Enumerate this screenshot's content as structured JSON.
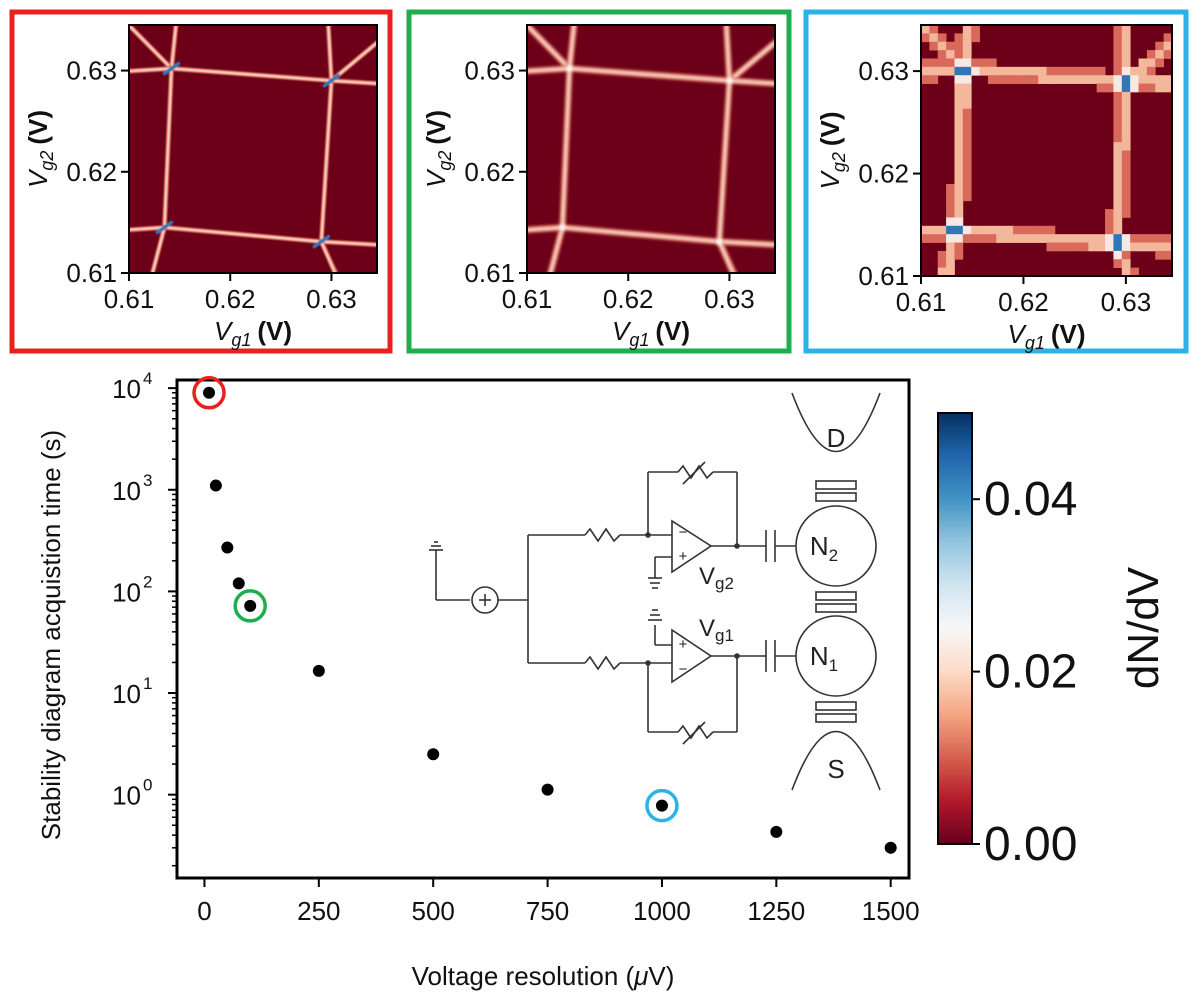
{
  "colors": {
    "panel_red": "#e8201e",
    "panel_green": "#1fae4e",
    "panel_blue": "#2bb3e6",
    "map_bg": "#6b0018",
    "line_light": "#f6d2c2",
    "peak_blue": "#2f78b8",
    "point": "#000000"
  },
  "insets": [
    {
      "name": "red",
      "border_color": "#e8201e",
      "style": "sharp",
      "xlabel_symbol": "V",
      "xlabel_sub": "g1",
      "xlabel_unit": "(V)",
      "ylabel_symbol": "V",
      "ylabel_sub": "g2",
      "ylabel_unit": "(V)",
      "xticks": [
        0.61,
        0.62,
        0.63
      ],
      "yticks": [
        0.61,
        0.62,
        0.63
      ],
      "xtick_labels": [
        "0.61",
        "0.62",
        "0.63"
      ],
      "ytick_labels": [
        "0.61",
        "0.62",
        "0.63"
      ],
      "xlim": [
        0.61,
        0.6345
      ],
      "ylim": [
        0.61,
        0.6345
      ]
    },
    {
      "name": "green",
      "border_color": "#1fae4e",
      "style": "medium",
      "xlabel_symbol": "V",
      "xlabel_sub": "g1",
      "xlabel_unit": "(V)",
      "ylabel_symbol": "V",
      "ylabel_sub": "g2",
      "ylabel_unit": "(V)",
      "xticks": [
        0.61,
        0.62,
        0.63
      ],
      "yticks": [
        0.61,
        0.62,
        0.63
      ],
      "xtick_labels": [
        "0.61",
        "0.62",
        "0.63"
      ],
      "ytick_labels": [
        "0.61",
        "0.62",
        "0.63"
      ],
      "xlim": [
        0.61,
        0.6345
      ],
      "ylim": [
        0.61,
        0.6345
      ]
    },
    {
      "name": "blue",
      "border_color": "#2bb3e6",
      "style": "pixelated",
      "xlabel_symbol": "V",
      "xlabel_sub": "g1",
      "xlabel_unit": "(V)",
      "ylabel_symbol": "V",
      "ylabel_sub": "g2",
      "ylabel_unit": "(V)",
      "xticks": [
        0.61,
        0.62,
        0.63
      ],
      "yticks": [
        0.61,
        0.62,
        0.63
      ],
      "xtick_labels": [
        "0.61",
        "0.62",
        "0.63"
      ],
      "ytick_labels": [
        "0.61",
        "0.62",
        "0.63"
      ],
      "xlim": [
        0.61,
        0.6345
      ],
      "ylim": [
        0.61,
        0.6345
      ]
    }
  ],
  "chart_data": {
    "type": "scatter",
    "xlabel_prefix": "Voltage resolution (",
    "xlabel_mu": "μ",
    "xlabel_suffix": "V)",
    "ylabel": "Stability diagram acquistion time (s)",
    "xlim": [
      -60,
      1540
    ],
    "ylog_range": [
      -0.82,
      4.08
    ],
    "yscale": "log",
    "xticks": [
      0,
      250,
      500,
      750,
      1000,
      1250,
      1500
    ],
    "xtick_labels": [
      "0",
      "250",
      "500",
      "750",
      "1000",
      "1250",
      "1500"
    ],
    "ytick_exponents": [
      0,
      1,
      2,
      3,
      4
    ],
    "ytick_base": "10",
    "points": [
      {
        "x": 10,
        "y": 9000,
        "highlight": "red"
      },
      {
        "x": 25,
        "y": 1100,
        "highlight": null
      },
      {
        "x": 50,
        "y": 270,
        "highlight": null
      },
      {
        "x": 75,
        "y": 120,
        "highlight": null
      },
      {
        "x": 100,
        "y": 72,
        "highlight": "green"
      },
      {
        "x": 250,
        "y": 16.5,
        "highlight": null
      },
      {
        "x": 500,
        "y": 2.5,
        "highlight": null
      },
      {
        "x": 750,
        "y": 1.12,
        "highlight": null
      },
      {
        "x": 1000,
        "y": 0.78,
        "highlight": "blue"
      },
      {
        "x": 1250,
        "y": 0.43,
        "highlight": null
      },
      {
        "x": 1500,
        "y": 0.3,
        "highlight": null
      }
    ],
    "colorbar": {
      "label": "dN/dV",
      "ticks": [
        0.0,
        0.02,
        0.04
      ],
      "tick_labels": [
        "0.00",
        "0.02",
        "0.04"
      ],
      "range": [
        0.0,
        0.05
      ],
      "colors": [
        "#67001f",
        "#b2182b",
        "#d6604d",
        "#f4a582",
        "#fddbc7",
        "#f7f7f7",
        "#d1e5f0",
        "#92c5de",
        "#4393c3",
        "#2166ac",
        "#053061"
      ]
    }
  },
  "circuit": {
    "label_D": "D",
    "label_S": "S",
    "label_N2": "N",
    "label_N2_sub": "2",
    "label_N1": "N",
    "label_N1_sub": "1",
    "label_Vg2": "V",
    "label_Vg2_sub": "g2",
    "label_Vg1": "V",
    "label_Vg1_sub": "g1",
    "plus": "+",
    "minus": "−"
  }
}
